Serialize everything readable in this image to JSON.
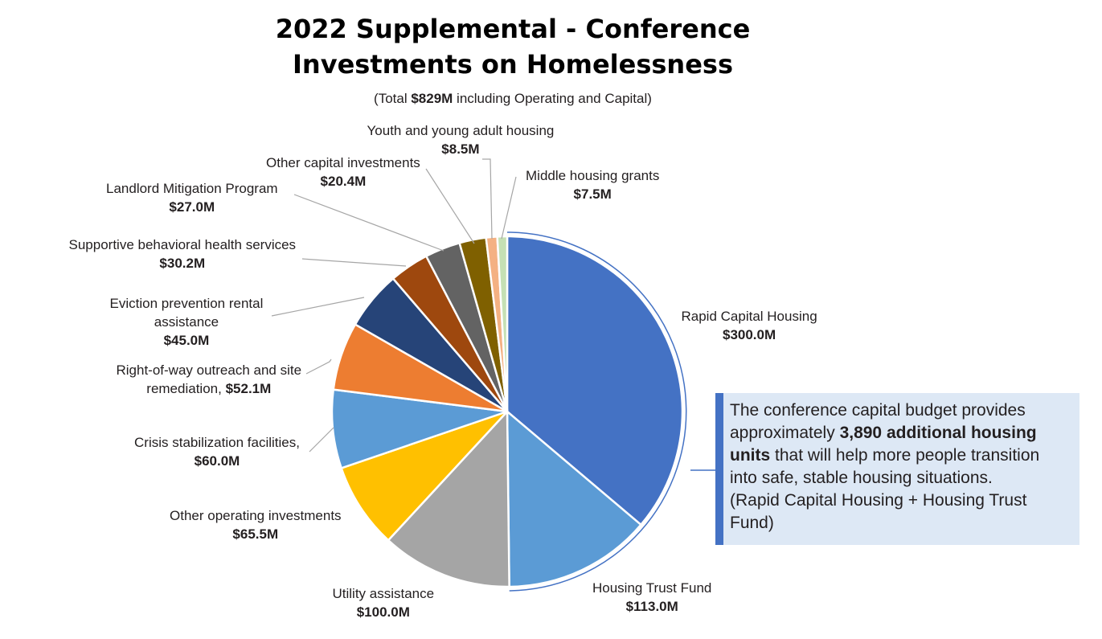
{
  "chart_data": {
    "type": "pie",
    "title": [
      "2022 Supplemental - Conference",
      "Investments on Homelessness"
    ],
    "subtitle": {
      "prefix": "(Total ",
      "bold": "$829M",
      "suffix": " including Operating and Capital)"
    },
    "slices": [
      {
        "label": [
          "Rapid Capital Housing"
        ],
        "value_text": "$300.0M",
        "value": 300.0,
        "color": "#4472c4"
      },
      {
        "label": [
          "Housing Trust Fund"
        ],
        "value_text": "$113.0M",
        "value": 113.0,
        "color": "#5b9bd5"
      },
      {
        "label": [
          "Utility assistance"
        ],
        "value_text": "$100.0M",
        "value": 100.0,
        "color": "#a5a5a5"
      },
      {
        "label": [
          "Other operating investments"
        ],
        "value_text": "$65.5M",
        "value": 65.5,
        "color": "#ffc000"
      },
      {
        "label": [
          "Crisis stabilization facilities,"
        ],
        "value_text": "$60.0M",
        "value": 60.0,
        "color": "#5b9bd5"
      },
      {
        "label": [
          "Right-of-way outreach and site",
          "remediation,"
        ],
        "value_text": "$52.1M",
        "value": 52.1,
        "inline_value": true,
        "color": "#ed7d31"
      },
      {
        "label": [
          "Eviction prevention rental",
          "assistance"
        ],
        "value_text": "$45.0M",
        "value": 45.0,
        "color": "#264478"
      },
      {
        "label": [
          "Supportive behavioral health services"
        ],
        "value_text": "$30.2M",
        "value": 30.2,
        "color": "#9e480e"
      },
      {
        "label": [
          "Landlord Mitigation Program"
        ],
        "value_text": "$27.0M",
        "value": 27.0,
        "color": "#636363"
      },
      {
        "label": [
          "Other capital investments"
        ],
        "value_text": "$20.4M",
        "value": 20.4,
        "color": "#7f6000"
      },
      {
        "label": [
          "Youth and young adult housing"
        ],
        "value_text": "$8.5M",
        "value": 8.5,
        "color": "#f4b183"
      },
      {
        "label": [
          "Middle housing grants"
        ],
        "value_text": "$7.5M",
        "value": 7.5,
        "color": "#c5e0b4"
      }
    ]
  },
  "callout": {
    "lines": [
      [
        {
          "t": "The conference capital budget provides"
        }
      ],
      [
        {
          "t": "approximately "
        },
        {
          "t": "3,890 additional housing",
          "b": true
        }
      ],
      [
        {
          "t": "units",
          "b": true
        },
        {
          "t": " that will help more people transition"
        }
      ],
      [
        {
          "t": "into safe, stable housing situations."
        }
      ],
      [
        {
          "t": "(Rapid Capital Housing + Housing Trust"
        }
      ],
      [
        {
          "t": "Fund)"
        }
      ]
    ],
    "accent_color": "#4472c4",
    "background_color": "#dde8f5"
  }
}
